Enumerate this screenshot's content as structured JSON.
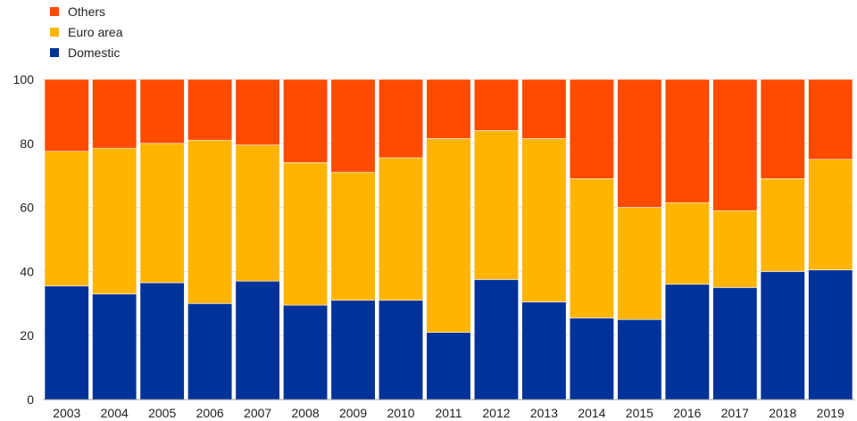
{
  "chart_data": {
    "type": "bar",
    "stacked": true,
    "categories": [
      "2003",
      "2004",
      "2005",
      "2006",
      "2007",
      "2008",
      "2009",
      "2010",
      "2011",
      "2012",
      "2013",
      "2014",
      "2015",
      "2016",
      "2017",
      "2018",
      "2019"
    ],
    "series": [
      {
        "name": "Domestic",
        "color": "#003299",
        "values": [
          35.5,
          33,
          36.5,
          30,
          37,
          29.5,
          31,
          31,
          21,
          37.5,
          30.5,
          25.5,
          25,
          36,
          35,
          40,
          40.5
        ]
      },
      {
        "name": "Euro area",
        "color": "#ffb400",
        "values": [
          42,
          45.5,
          43.5,
          51,
          42.5,
          44.5,
          40,
          44.5,
          60.5,
          46.5,
          51,
          43.5,
          35,
          25.5,
          24,
          29,
          34.5
        ]
      },
      {
        "name": "Others",
        "color": "#ff4b00",
        "values": [
          22.5,
          21.5,
          20,
          19,
          20.5,
          26,
          29,
          24.5,
          18.5,
          16,
          18.5,
          31,
          40,
          38.5,
          41,
          31,
          25
        ]
      }
    ],
    "legend_order": [
      "Others",
      "Euro area",
      "Domestic"
    ],
    "legend_position": "top-left",
    "yticks": [
      0,
      20,
      40,
      60,
      80,
      100
    ],
    "ylim": [
      0,
      100
    ],
    "grid": "horizontal"
  }
}
